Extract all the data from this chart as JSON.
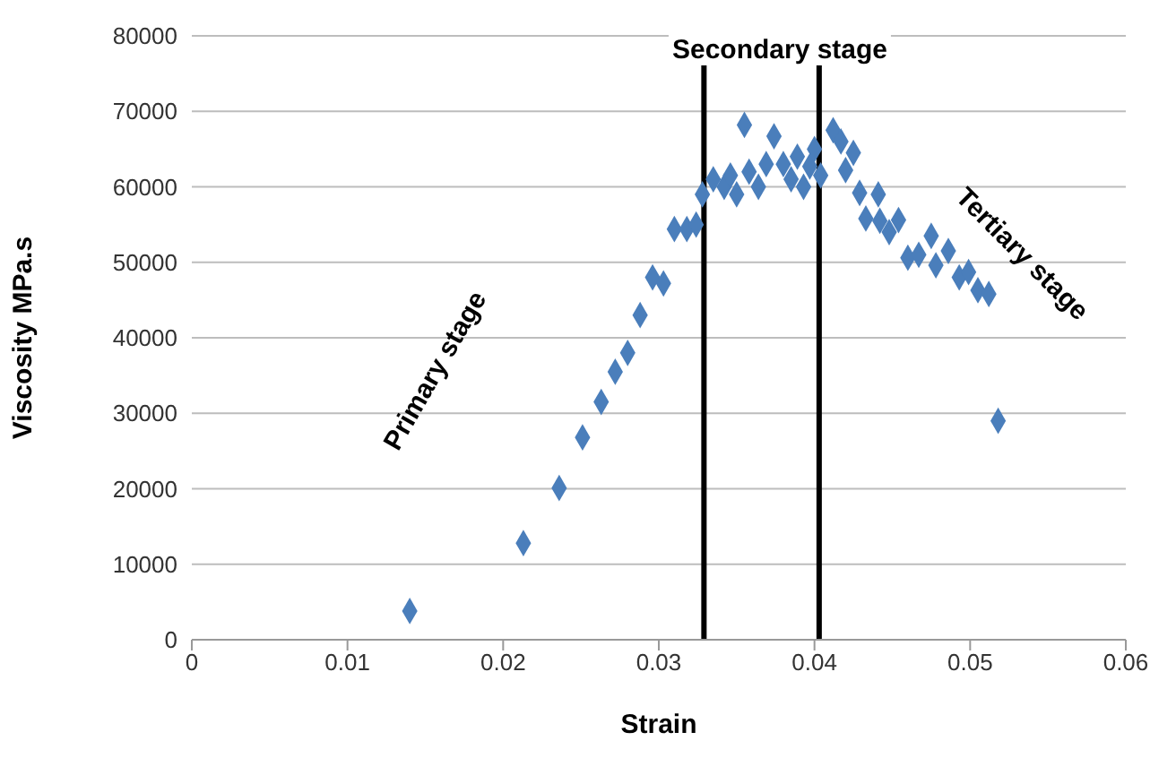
{
  "chart_data": {
    "type": "scatter",
    "xlabel": "Strain",
    "ylabel": "Viscosity MPa.s",
    "x": [
      0.014,
      0.0213,
      0.0236,
      0.0251,
      0.0263,
      0.0272,
      0.028,
      0.0288,
      0.0296,
      0.0303,
      0.031,
      0.0318,
      0.0324,
      0.0328,
      0.0335,
      0.0342,
      0.0346,
      0.035,
      0.0355,
      0.0358,
      0.0364,
      0.0369,
      0.0374,
      0.038,
      0.0385,
      0.0389,
      0.0393,
      0.0397,
      0.04,
      0.0404,
      0.0412,
      0.0417,
      0.042,
      0.0425,
      0.0429,
      0.0433,
      0.0441,
      0.0442,
      0.0448,
      0.0454,
      0.046,
      0.0467,
      0.0475,
      0.0478,
      0.0486,
      0.0493,
      0.0499,
      0.0505,
      0.0512,
      0.0518
    ],
    "series": [
      {
        "color": "#4a7ebb",
        "values": [
          3800,
          12800,
          20100,
          26800,
          31500,
          35500,
          38000,
          43000,
          48000,
          47200,
          54400,
          54400,
          55000,
          59000,
          61000,
          60000,
          61500,
          59000,
          68200,
          62000,
          60000,
          63000,
          66700,
          63000,
          61000,
          64000,
          60000,
          62700,
          65000,
          61500,
          67500,
          66000,
          62200,
          64500,
          59200,
          55800,
          59000,
          55500,
          54000,
          55600,
          50600,
          51000,
          53500,
          49600,
          51500,
          48000,
          48700,
          46300,
          45800,
          29000
        ]
      }
    ],
    "xlim": [
      0,
      0.06
    ],
    "xticks": [
      0,
      0.01,
      0.02,
      0.03,
      0.04,
      0.05,
      0.06
    ],
    "ylim": [
      0,
      80000
    ],
    "yticks": [
      0,
      10000,
      20000,
      30000,
      40000,
      50000,
      60000,
      70000,
      80000
    ],
    "grid": "y",
    "legend": false,
    "marker": "diamond",
    "ref_lines": [
      {
        "axis": "x",
        "value": 0.0329,
        "color": "#000000"
      },
      {
        "axis": "x",
        "value": 0.0403,
        "color": "#000000"
      }
    ],
    "annotations": [
      "Primary stage",
      "Secondary stage",
      "Tertiary stage"
    ]
  }
}
